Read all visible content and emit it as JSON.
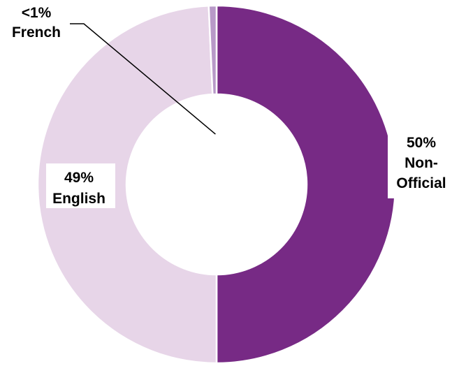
{
  "chart_data": {
    "type": "pie",
    "variant": "donut",
    "title": "",
    "slices": [
      {
        "name": "Non-Official",
        "value": 50,
        "label_pct": "50%",
        "label_lines": [
          "50%",
          "Non-",
          "Official"
        ],
        "color": "#772a85"
      },
      {
        "name": "English",
        "value": 49.3,
        "label_pct": "49%",
        "label_lines": [
          "49%",
          "English"
        ],
        "color": "#e7d5e8"
      },
      {
        "name": "French",
        "value": 0.7,
        "label_pct": "<1%",
        "label_lines": [
          "<1%",
          "French"
        ],
        "color": "#b899c8"
      }
    ],
    "start_angle_deg": 0,
    "direction": "clockwise",
    "legend": "none",
    "slice_border_color": "#ffffff"
  }
}
